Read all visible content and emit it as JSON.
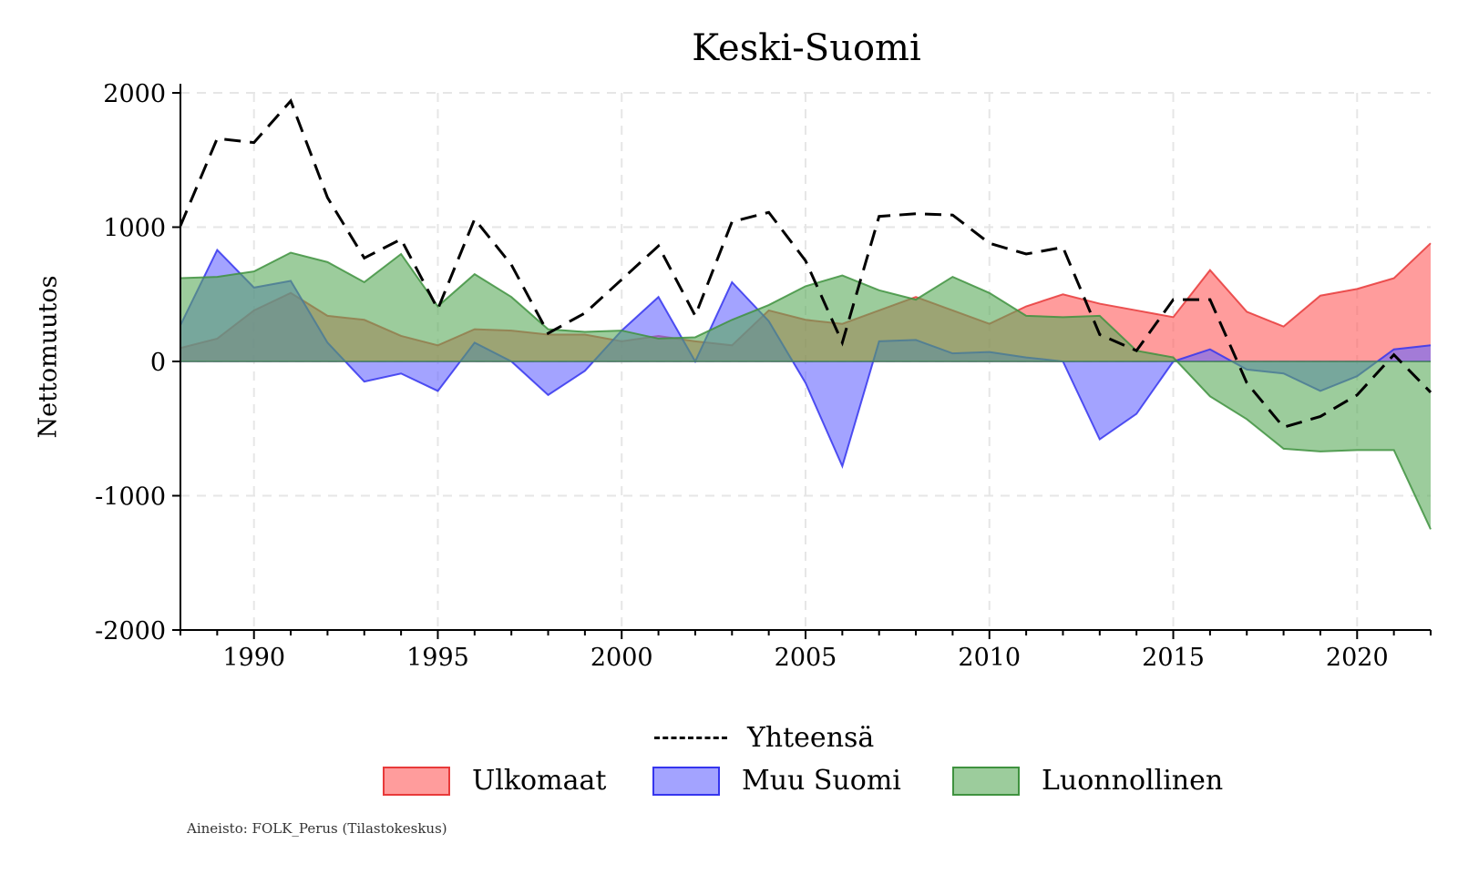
{
  "chart_data": {
    "type": "area",
    "title": "Keski-Suomi",
    "ylabel": "Nettomuutos",
    "xlabel": "",
    "xlim": [
      1988,
      2022
    ],
    "ylim": [
      -2000,
      2000
    ],
    "x_ticks": [
      1990,
      1995,
      2000,
      2005,
      2010,
      2015,
      2020
    ],
    "y_ticks": [
      2000,
      1000,
      0,
      -1000,
      -2000
    ],
    "grid": true,
    "years": [
      1988,
      1989,
      1990,
      1991,
      1992,
      1993,
      1994,
      1995,
      1996,
      1997,
      1998,
      1999,
      2000,
      2001,
      2002,
      2003,
      2004,
      2005,
      2006,
      2007,
      2008,
      2009,
      2010,
      2011,
      2012,
      2013,
      2014,
      2015,
      2016,
      2017,
      2018,
      2019,
      2020,
      2021,
      2022
    ],
    "series": [
      {
        "name": "Ulkomaat",
        "kind": "area",
        "fill": "#ff5a5a",
        "stroke": "#e83a3a",
        "values": [
          100,
          170,
          380,
          510,
          340,
          310,
          190,
          120,
          240,
          230,
          200,
          200,
          150,
          190,
          150,
          120,
          380,
          310,
          280,
          380,
          480,
          380,
          280,
          410,
          500,
          430,
          380,
          330,
          680,
          370,
          260,
          490,
          540,
          620,
          880
        ]
      },
      {
        "name": "Muu Suomi",
        "kind": "area",
        "fill": "#6666ff",
        "stroke": "#3535ee",
        "values": [
          270,
          830,
          550,
          600,
          140,
          -150,
          -90,
          -220,
          140,
          0,
          -250,
          -70,
          230,
          480,
          0,
          590,
          300,
          -160,
          -780,
          150,
          160,
          60,
          70,
          30,
          0,
          -580,
          -390,
          0,
          90,
          -60,
          -90,
          -220,
          -110,
          90,
          120
        ]
      },
      {
        "name": "Luonnollinen",
        "kind": "area",
        "fill": "#5aaa5a",
        "stroke": "#3f923f",
        "values": [
          620,
          630,
          670,
          810,
          740,
          590,
          800,
          410,
          650,
          480,
          240,
          220,
          230,
          170,
          180,
          310,
          420,
          560,
          640,
          530,
          460,
          630,
          510,
          340,
          330,
          340,
          80,
          30,
          -260,
          -430,
          -650,
          -670,
          -660,
          -660,
          -1250
        ]
      },
      {
        "name": "Yhteensä",
        "kind": "dashed-line",
        "stroke": "#000000",
        "values": [
          1010,
          1660,
          1630,
          1940,
          1220,
          770,
          910,
          390,
          1060,
          720,
          210,
          360,
          610,
          860,
          340,
          1040,
          1110,
          750,
          140,
          1080,
          1100,
          1090,
          880,
          800,
          850,
          200,
          80,
          460,
          460,
          -160,
          -490,
          -410,
          -250,
          50,
          -230
        ]
      }
    ],
    "legend": {
      "placement": "bottom",
      "line_entry": "Yhteensä",
      "area_entries": [
        "Ulkomaat",
        "Muu Suomi",
        "Luonnollinen"
      ]
    },
    "annotation": "Aineisto: FOLK_Perus (Tilastokeskus)"
  }
}
